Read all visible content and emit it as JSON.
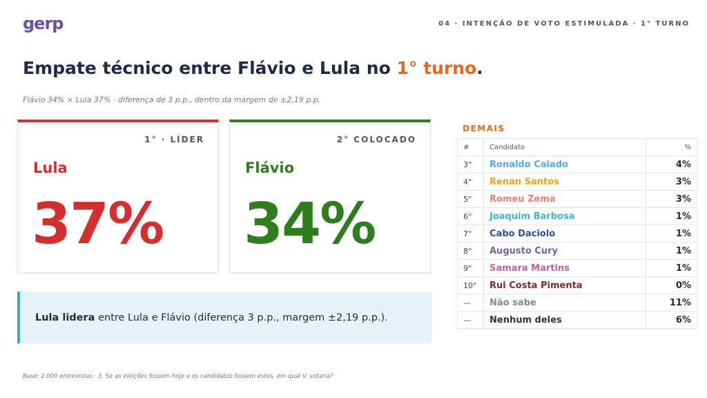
{
  "header": {
    "logo": "gerp",
    "section": "04 · INTENÇÃO DE VOTO ESTIMULADA · 1° TURNO"
  },
  "title": {
    "pre": "Empate técnico entre Flávio e Lula no ",
    "highlight": "1° turno",
    "post": "."
  },
  "subtitle": "Flávio 34% × Lula 37% · diferença de 3 p.p., dentro da margem de ±2,19 p.p.",
  "cards": [
    {
      "rank": "1° · LÍDER",
      "name": "Lula",
      "value": "37%"
    },
    {
      "rank": "2° COLOCADO",
      "name": "Flávio",
      "value": "34%"
    }
  ],
  "callout": {
    "bold": "Lula lidera",
    "text": " entre Lula e Flávio (diferença 3 p.p., margem ±2,19 p.p.)."
  },
  "table": {
    "title": "DEMAIS",
    "headers": [
      "#",
      "Candidato",
      "%"
    ],
    "rows": [
      {
        "rank": "3°",
        "name": "Ronaldo Caiado",
        "pct": "4%",
        "color": "#5aa9e6"
      },
      {
        "rank": "4°",
        "name": "Renan Santos",
        "pct": "3%",
        "color": "#e8a317"
      },
      {
        "rank": "5°",
        "name": "Romeu Zema",
        "pct": "3%",
        "color": "#e9806e"
      },
      {
        "rank": "6°",
        "name": "Joaquim Barbosa",
        "pct": "1%",
        "color": "#3fb6c0"
      },
      {
        "rank": "7°",
        "name": "Cabo Daciolo",
        "pct": "1%",
        "color": "#2d4f8a"
      },
      {
        "rank": "8°",
        "name": "Augusto Cury",
        "pct": "1%",
        "color": "#7a5fa0"
      },
      {
        "rank": "9°",
        "name": "Samara Martins",
        "pct": "1%",
        "color": "#c2609e"
      },
      {
        "rank": "10°",
        "name": "Rui Costa Pimenta",
        "pct": "0%",
        "color": "#7a2a2a"
      },
      {
        "rank": "—",
        "name": "Não sabe",
        "pct": "11%",
        "color": "#888888"
      },
      {
        "rank": "—",
        "name": "Nenhum deles",
        "pct": "6%",
        "color": "#333333"
      }
    ]
  },
  "footer": "Base: 2.000 entrevistas · 3. Se as eleições fossem hoje e os candidatos fossem estes, em qual V. votaria?"
}
